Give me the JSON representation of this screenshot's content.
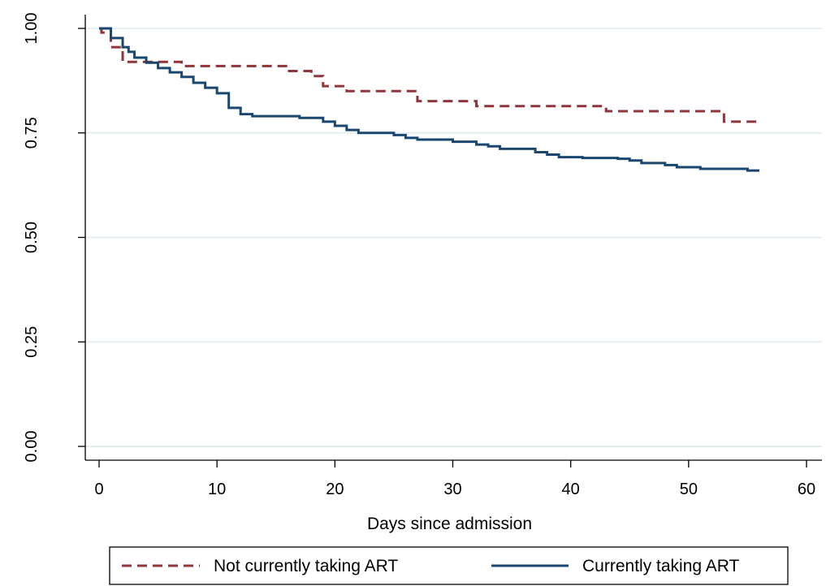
{
  "chart_data": {
    "type": "line",
    "step": true,
    "title": "",
    "xlabel": "Days since admission",
    "ylabel": "",
    "xlim": [
      0,
      60
    ],
    "ylim": [
      0,
      1
    ],
    "xticks": [
      0,
      10,
      20,
      30,
      40,
      50,
      60
    ],
    "xtick_labels": [
      "0",
      "10",
      "20",
      "30",
      "40",
      "50",
      "60"
    ],
    "yticks": [
      0,
      0.25,
      0.5,
      0.75,
      1
    ],
    "ytick_labels": [
      "0.00",
      "0.25",
      "0.50",
      "0.75",
      "1.00"
    ],
    "grid": "horizontal",
    "legend_position": "bottom",
    "series": [
      {
        "name": "Not currently taking ART",
        "color": "#90353b",
        "style": "dashed",
        "points": [
          [
            0,
            1.0
          ],
          [
            0.2,
            0.99
          ],
          [
            1,
            0.955
          ],
          [
            2,
            0.92
          ],
          [
            5,
            0.92
          ],
          [
            7,
            0.91
          ],
          [
            14,
            0.91
          ],
          [
            16,
            0.898
          ],
          [
            18,
            0.886
          ],
          [
            19,
            0.862
          ],
          [
            21,
            0.85
          ],
          [
            27,
            0.826
          ],
          [
            32,
            0.814
          ],
          [
            43,
            0.802
          ],
          [
            53,
            0.777
          ],
          [
            56,
            0.777
          ]
        ]
      },
      {
        "name": "Currently taking ART",
        "color": "#1a476f",
        "style": "solid",
        "points": [
          [
            0,
            1.0
          ],
          [
            1,
            0.977
          ],
          [
            2,
            0.955
          ],
          [
            2.5,
            0.944
          ],
          [
            3,
            0.93
          ],
          [
            4,
            0.918
          ],
          [
            5,
            0.905
          ],
          [
            6,
            0.895
          ],
          [
            7,
            0.884
          ],
          [
            8,
            0.87
          ],
          [
            9,
            0.858
          ],
          [
            10,
            0.845
          ],
          [
            11,
            0.81
          ],
          [
            12,
            0.795
          ],
          [
            13,
            0.79
          ],
          [
            17,
            0.786
          ],
          [
            19,
            0.777
          ],
          [
            20,
            0.767
          ],
          [
            21,
            0.757
          ],
          [
            22,
            0.75
          ],
          [
            25,
            0.745
          ],
          [
            26,
            0.738
          ],
          [
            27,
            0.734
          ],
          [
            30,
            0.729
          ],
          [
            32,
            0.722
          ],
          [
            33,
            0.718
          ],
          [
            34,
            0.712
          ],
          [
            37,
            0.704
          ],
          [
            38,
            0.698
          ],
          [
            39,
            0.692
          ],
          [
            41,
            0.69
          ],
          [
            44,
            0.688
          ],
          [
            45,
            0.684
          ],
          [
            46,
            0.678
          ],
          [
            48,
            0.673
          ],
          [
            49,
            0.668
          ],
          [
            51,
            0.664
          ],
          [
            55,
            0.66
          ],
          [
            56,
            0.66
          ]
        ]
      }
    ]
  }
}
